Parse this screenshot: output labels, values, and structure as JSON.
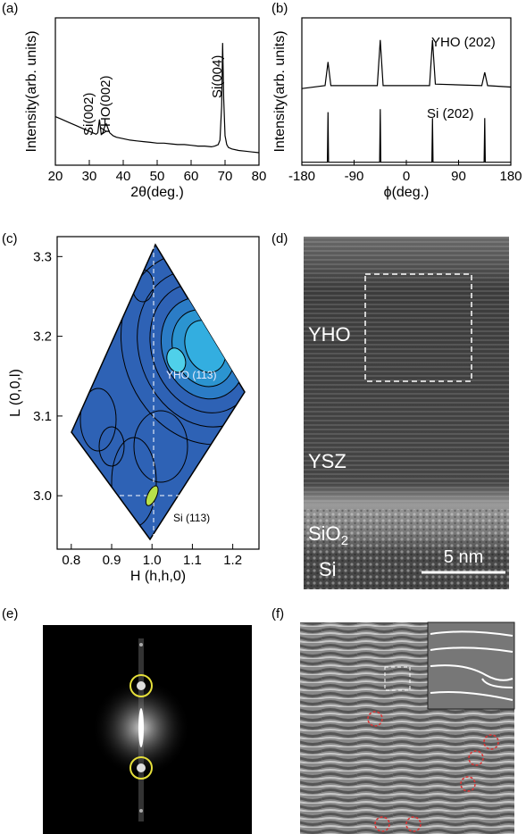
{
  "chart_data": [
    {
      "type": "line",
      "panel_label": "(a)",
      "x_label": "2θ(deg.)",
      "y_label": "Intensity(arb. units)",
      "xlim": [
        20,
        80
      ],
      "xticks": [
        20,
        30,
        40,
        50,
        60,
        70,
        80
      ],
      "ylim": [
        0,
        100
      ],
      "color": "#000000",
      "annotations": [
        "Si(002)",
        "YHO(002)",
        "Si(004)"
      ],
      "x": [
        20,
        22,
        24,
        26,
        28,
        30,
        31,
        32,
        32.5,
        33,
        33.5,
        34,
        34.5,
        35,
        35.5,
        36,
        37,
        38,
        40,
        42,
        44,
        46,
        48,
        50,
        52,
        54,
        56,
        58,
        60,
        62,
        64,
        66,
        67,
        68,
        68.5,
        69,
        69.3,
        69.6,
        70,
        70.5,
        71,
        72,
        74,
        76,
        78,
        80
      ],
      "values": [
        33,
        31,
        29,
        27,
        25,
        23,
        22,
        21,
        22,
        31,
        21,
        22,
        26,
        28,
        25,
        22,
        20,
        19,
        18,
        17,
        16.5,
        16,
        15.5,
        15,
        15,
        14.5,
        14,
        14,
        13.5,
        13,
        13,
        12.5,
        13,
        14,
        17,
        40,
        83,
        45,
        20,
        14,
        12,
        11,
        10,
        9.5,
        9,
        8.5
      ]
    },
    {
      "type": "line",
      "panel_label": "(b)",
      "x_label": "ϕ(deg.)",
      "y_label": "Intensity(arb. units)",
      "xlim": [
        -180,
        180
      ],
      "xticks": [
        -180,
        -90,
        0,
        90,
        180
      ],
      "ylim": [
        0,
        100
      ],
      "series": [
        {
          "name": "YHO (202)",
          "color": "#000000",
          "x": [
            -180,
            -140,
            -135,
            -130,
            -50,
            -45,
            -40,
            40,
            45,
            50,
            130,
            135,
            140,
            180
          ],
          "values": [
            52,
            54,
            70,
            54,
            54,
            85,
            54,
            54,
            85,
            55,
            54,
            63,
            54,
            53
          ]
        },
        {
          "name": "Si (202)",
          "color": "#000000",
          "x": [
            -180,
            -136,
            -135,
            -134,
            -46,
            -45,
            -44,
            44,
            45,
            46,
            134,
            135,
            136,
            180
          ],
          "values": [
            2,
            2,
            36,
            2,
            2,
            38,
            2,
            2,
            32,
            2,
            2,
            32,
            2,
            2
          ]
        }
      ]
    },
    {
      "type": "contour",
      "panel_label": "(c)",
      "x_label": "H (h,h,0)",
      "y_label": "L (0,0,l)",
      "xlim": [
        0.765,
        1.265
      ],
      "xticks": [
        0.8,
        0.9,
        {
          "value": 1,
          "label": "1.0"
        },
        1.1,
        1.2
      ],
      "ylim": [
        2.933,
        3.325
      ],
      "yticks": [
        {
          "value": 3,
          "label": "3.0"
        },
        3.1,
        3.2,
        3.3
      ],
      "peaks": [
        {
          "name": "YHO (113)",
          "x": 1.06,
          "y": 3.17
        },
        {
          "name": "Si (113)",
          "x": 1.0,
          "y": 3.0
        }
      ]
    }
  ],
  "images": [
    {
      "panel_label": "(d)",
      "labels": {
        "yho": "YHO",
        "ysz": "YSZ",
        "sio2": "SiO",
        "sio2_sub": "2",
        "si": "Si"
      },
      "scale_bar": "5 nm"
    },
    {
      "panel_label": "(e)"
    },
    {
      "panel_label": "(f)"
    }
  ]
}
